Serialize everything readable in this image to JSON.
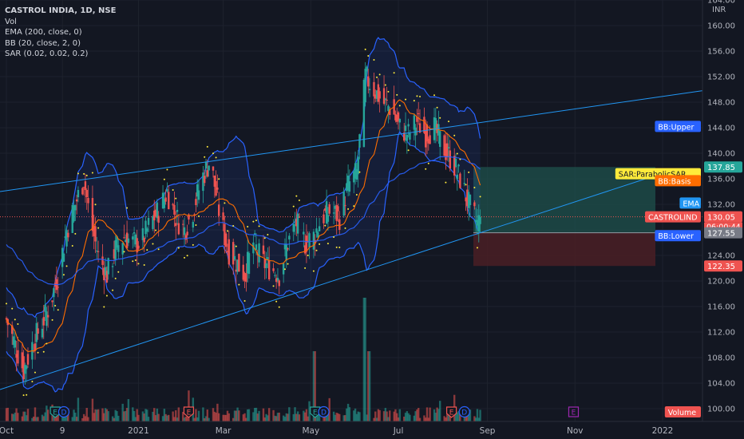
{
  "legend": {
    "title": "CASTROL INDIA, 1D, NSE",
    "lines": [
      "Vol",
      "EMA (200, close, 0)",
      "BB (20, close, 2, 0)",
      "SAR (0.02, 0.02, 0.2)"
    ]
  },
  "colors": {
    "background": "#131722",
    "grid": "#1e222d",
    "up": "#26a69a",
    "down": "#ef5350",
    "bb_band": "#2962ff",
    "bb_basis": "#ff6d00",
    "ema": "#2962ff",
    "sar": "#ffeb3b",
    "trendline": "#2196f3",
    "profit_zone": "#1e4d4a",
    "loss_zone": "#4a1f24"
  },
  "chart_data": {
    "type": "candlestick",
    "symbol": "CASTROL INDIA",
    "interval": "1D",
    "exchange": "NSE",
    "currency": "INR",
    "y_axis": {
      "ticks": [
        100,
        104,
        108,
        112,
        116,
        120,
        124,
        128,
        132,
        136,
        140,
        144,
        148,
        152,
        156,
        160,
        164
      ],
      "range": [
        99,
        165
      ]
    },
    "x_axis": {
      "labels": [
        "Oct",
        "9",
        "2021",
        "Mar",
        "May",
        "Jul",
        "Sep",
        "Nov",
        "2022"
      ]
    },
    "last_price": 130.05,
    "countdown": "06:00:44",
    "price_labels": [
      {
        "name": "BB:Upper",
        "value": 144.2,
        "color": "#2962ff"
      },
      {
        "name": "SAR:ParabolicSAR",
        "value": 136.8,
        "color": "#ffeb3b"
      },
      {
        "name": "BB:Basis",
        "value": 135.7,
        "color": "#ff6d00"
      },
      {
        "name": "EMA",
        "value": 132.2,
        "color": "#2196f3"
      },
      {
        "name": "CASTROLIND",
        "value": 130.05,
        "color": "#ef5350"
      },
      {
        "name": "BB:Lower",
        "value": 127.1,
        "color": "#2962ff"
      },
      {
        "name": "Volume",
        "value": 99.5,
        "color": "#ef5350"
      }
    ],
    "axis_tags": [
      {
        "text": "137.85",
        "value": 137.85,
        "color": "#26a69a"
      },
      {
        "text": "130.05",
        "value": 130.05,
        "color": "#ef5350"
      },
      {
        "text": "127.55",
        "value": 127.55,
        "color": "#787b86"
      },
      {
        "text": "122.35",
        "value": 122.35,
        "color": "#ef5350"
      }
    ],
    "position": {
      "entry": 127.55,
      "target": 137.85,
      "stop": 122.35
    },
    "trendlines": [
      {
        "from": {
          "x": "Oct 1 2020",
          "price": 134
        },
        "to": {
          "x": "Jan 3 2022",
          "price": 149.8
        }
      },
      {
        "from": {
          "x": "Oct 1 2020",
          "price": 103
        },
        "to": {
          "x": "Dec 20 2021",
          "price": 136.5
        }
      }
    ],
    "price_path": [
      [
        "2020-10-01",
        114
      ],
      [
        "2020-10-07",
        110
      ],
      [
        "2020-10-13",
        106
      ],
      [
        "2020-10-19",
        110
      ],
      [
        "2020-10-25",
        113
      ],
      [
        "2020-10-31",
        116
      ],
      [
        "2020-11-06",
        121
      ],
      [
        "2020-11-12",
        128
      ],
      [
        "2020-11-18",
        132
      ],
      [
        "2020-11-24",
        136
      ],
      [
        "2020-11-28",
        130
      ],
      [
        "2020-12-04",
        124
      ],
      [
        "2020-12-10",
        121
      ],
      [
        "2020-12-16",
        125
      ],
      [
        "2020-12-22",
        127
      ],
      [
        "2020-12-28",
        126
      ],
      [
        "2021-01-03",
        126
      ],
      [
        "2021-01-09",
        129
      ],
      [
        "2021-01-15",
        131
      ],
      [
        "2021-01-21",
        134
      ],
      [
        "2021-01-27",
        130
      ],
      [
        "2021-02-02",
        128
      ],
      [
        "2021-02-08",
        131
      ],
      [
        "2021-02-14",
        136
      ],
      [
        "2021-02-20",
        139
      ],
      [
        "2021-02-26",
        131
      ],
      [
        "2021-03-04",
        125
      ],
      [
        "2021-03-10",
        123
      ],
      [
        "2021-03-16",
        121
      ],
      [
        "2021-03-22",
        126
      ],
      [
        "2021-03-28",
        123
      ],
      [
        "2021-04-03",
        122
      ],
      [
        "2021-04-09",
        121
      ],
      [
        "2021-04-15",
        126
      ],
      [
        "2021-04-21",
        129
      ],
      [
        "2021-04-27",
        126
      ],
      [
        "2021-05-03",
        127
      ],
      [
        "2021-05-09",
        130
      ],
      [
        "2021-05-15",
        131
      ],
      [
        "2021-05-21",
        130
      ],
      [
        "2021-05-27",
        135
      ],
      [
        "2021-06-02",
        137
      ],
      [
        "2021-06-08",
        152
      ],
      [
        "2021-06-14",
        150
      ],
      [
        "2021-06-20",
        148
      ],
      [
        "2021-06-26",
        147
      ],
      [
        "2021-07-02",
        144
      ],
      [
        "2021-07-08",
        143
      ],
      [
        "2021-07-14",
        145
      ],
      [
        "2021-07-20",
        143
      ],
      [
        "2021-07-26",
        144
      ],
      [
        "2021-08-01",
        141
      ],
      [
        "2021-08-07",
        139
      ],
      [
        "2021-08-13",
        136
      ],
      [
        "2021-08-19",
        132
      ],
      [
        "2021-08-25",
        129
      ],
      [
        "2021-08-28",
        130
      ]
    ],
    "volume_spikes": [
      {
        "x": "2021-06-07",
        "value": "max"
      },
      {
        "x": "2021-05-03",
        "value": "high"
      },
      {
        "x": "2021-06-11",
        "value": "high"
      }
    ],
    "event_markers": [
      {
        "x": "2020-11-04",
        "label": "E",
        "color": "#26a69a"
      },
      {
        "x": "2020-11-10",
        "label": "D",
        "color": "#2962ff"
      },
      {
        "x": "2021-02-05",
        "label": "E",
        "color": "#ef5350"
      },
      {
        "x": "2021-05-04",
        "label": "E",
        "color": "#26a69a"
      },
      {
        "x": "2021-05-10",
        "label": "D",
        "color": "#2962ff"
      },
      {
        "x": "2021-08-07",
        "label": "E",
        "color": "#ef5350"
      },
      {
        "x": "2021-08-16",
        "label": "D",
        "color": "#2962ff"
      },
      {
        "x": "2021-10-31",
        "label": "E",
        "color": "#9c27b0"
      }
    ]
  }
}
